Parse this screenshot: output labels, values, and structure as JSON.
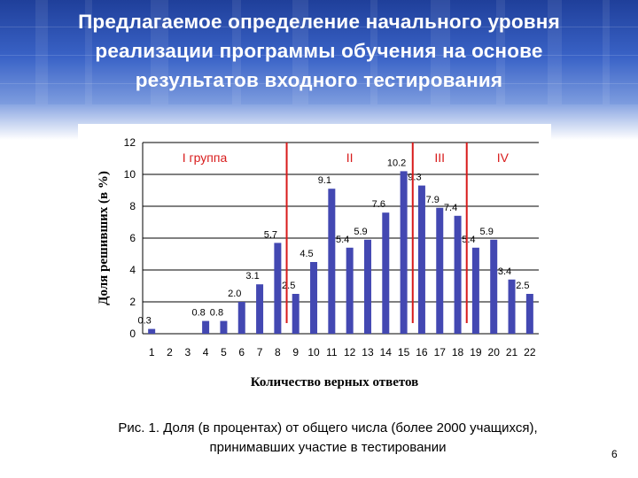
{
  "slide": {
    "title_lines": [
      "Предлагаемое определение начального уровня",
      "реализации программы обучения на основе",
      "результатов входного тестирования"
    ],
    "caption_lines": [
      "Рис. 1. Доля (в процентах) от общего числа (более 2000 учащихся),",
      "принимавших участие в тестировании"
    ],
    "page_number": "6"
  },
  "colors": {
    "bar": "#4348b2",
    "divider": "#d81b1b",
    "group_label": "#d81b1b",
    "banner": "#2e55b8"
  },
  "chart_data": {
    "type": "bar",
    "x": [
      "1",
      "2",
      "3",
      "4",
      "5",
      "6",
      "7",
      "8",
      "9",
      "10",
      "11",
      "12",
      "13",
      "14",
      "15",
      "16",
      "17",
      "18",
      "19",
      "20",
      "21",
      "22"
    ],
    "values": [
      0.3,
      0,
      0,
      0.8,
      0.8,
      2.0,
      3.1,
      5.7,
      2.5,
      4.5,
      9.1,
      5.4,
      5.9,
      7.6,
      10.2,
      9.3,
      7.9,
      7.4,
      5.4,
      5.9,
      3.4,
      2.5
    ],
    "value_labels": [
      "0.3",
      "",
      "",
      "0.8",
      "0.8",
      "2.0",
      "3.1",
      "5.7",
      "2.5",
      "4.5",
      "9.1",
      "5.4",
      "5.9",
      "7.6",
      "10.2",
      "9.3",
      "7.9",
      "7.4",
      "5.4",
      "5.9",
      "3.4",
      "2.5"
    ],
    "ylim": [
      0,
      12
    ],
    "yticks": [
      "0",
      "2",
      "4",
      "6",
      "8",
      "10",
      "12"
    ],
    "ylabel": "Доля решивших (в %)",
    "xlabel": "Количество верных ответов",
    "grid": true,
    "groups": [
      {
        "label": "I группа",
        "after_x": "8"
      },
      {
        "label": "II",
        "after_x": "15"
      },
      {
        "label": "III",
        "after_x": "18"
      },
      {
        "label": "IV",
        "after_x": ""
      }
    ]
  }
}
